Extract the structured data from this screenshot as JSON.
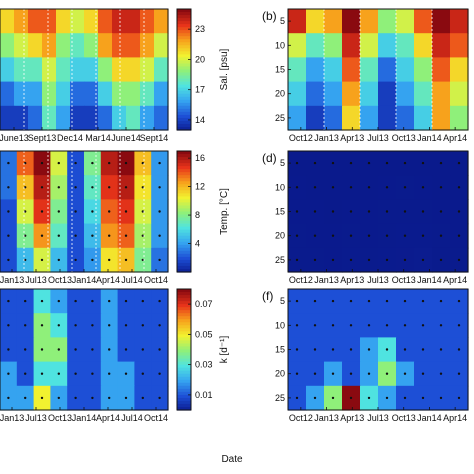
{
  "figure": {
    "xlabel": "Date"
  },
  "colors": {
    "cmap": [
      "#0a1a8c",
      "#1d4fd6",
      "#35a3f0",
      "#4fe3e0",
      "#8ff07a",
      "#f2f230",
      "#f7a21c",
      "#e8341a",
      "#8a0a10"
    ]
  },
  "chart_data": [
    {
      "type": "heatmap",
      "panel": "a",
      "label": "",
      "x_ticks": [
        "June13",
        "Sept13",
        "Dec14",
        "Mar14",
        "June14",
        "Sept14"
      ],
      "y_ticks": [],
      "colorbar": {
        "label": "Sal. [psu]",
        "ticks": [
          "23",
          "20",
          "17",
          "14"
        ],
        "range": [
          13,
          25
        ]
      },
      "dashed_lines": true,
      "grid": {
        "rows": [
          "5",
          "10",
          "15",
          "20",
          "25"
        ],
        "values": [
          [
            21,
            22,
            23,
            23,
            21,
            20,
            21,
            23,
            24,
            24,
            23,
            22
          ],
          [
            19,
            20,
            21,
            22,
            19,
            18,
            19,
            22,
            23,
            23,
            22,
            20
          ],
          [
            17,
            18,
            18,
            20,
            18,
            17,
            17,
            19,
            21,
            21,
            20,
            18
          ],
          [
            15,
            16,
            16,
            19,
            17,
            15,
            15,
            17,
            19,
            19,
            18,
            16
          ],
          [
            14,
            14,
            15,
            18,
            16,
            14,
            14,
            15,
            17,
            18,
            16,
            15
          ]
        ]
      }
    },
    {
      "type": "heatmap",
      "panel": "b",
      "label": "(b)",
      "x_ticks": [
        "Oct12",
        "Jan13",
        "Apr13",
        "Jul13",
        "Oct13",
        "Jan14",
        "Apr14"
      ],
      "y_ticks": [
        "5",
        "10",
        "15",
        "20",
        "25"
      ],
      "dashed_lines": true,
      "grid": {
        "rows": [
          "5",
          "10",
          "15",
          "20",
          "25"
        ],
        "values": [
          [
            24,
            21,
            22,
            25,
            22,
            19,
            20,
            23,
            25,
            24
          ],
          [
            20,
            18,
            19,
            24,
            20,
            17,
            18,
            21,
            24,
            23
          ],
          [
            18,
            16,
            17,
            23,
            18,
            15,
            17,
            19,
            23,
            21
          ],
          [
            17,
            15,
            16,
            22,
            17,
            14,
            16,
            18,
            22,
            20
          ],
          [
            16,
            14,
            15,
            21,
            16,
            14,
            15,
            17,
            22,
            19
          ]
        ]
      }
    },
    {
      "type": "heatmap",
      "panel": "c",
      "label": "",
      "x_ticks": [
        "Jan13",
        "Jul13",
        "Oct13",
        "Jan14",
        "Apr14",
        "Jul14",
        "Oct14"
      ],
      "y_ticks": [],
      "colorbar": {
        "label": "Temp. [°C]",
        "ticks": [
          "16",
          "12",
          "8",
          "4"
        ],
        "range": [
          0,
          17
        ]
      },
      "dashed_lines": true,
      "grid": {
        "rows": [
          "5",
          "10",
          "15",
          "20",
          "25"
        ],
        "values": [
          [
            3,
            14,
            17,
            10,
            2,
            8,
            16,
            17,
            12,
            4
          ],
          [
            3,
            12,
            16,
            9,
            2,
            7,
            15,
            16,
            11,
            4
          ],
          [
            2,
            10,
            15,
            8,
            2,
            6,
            14,
            15,
            10,
            4
          ],
          [
            2,
            8,
            13,
            7,
            2,
            5,
            13,
            14,
            9,
            4
          ],
          [
            2,
            5,
            10,
            5,
            2,
            4,
            11,
            12,
            8,
            3
          ]
        ]
      }
    },
    {
      "type": "heatmap",
      "panel": "d",
      "label": "(d)",
      "x_ticks": [
        "Oct12",
        "Jan13",
        "Apr13",
        "Jul13",
        "Oct13",
        "Jan14",
        "Apr14"
      ],
      "y_ticks": [
        "5",
        "10",
        "15",
        "20",
        "25"
      ],
      "grid": {
        "rows": [
          "5",
          "10",
          "15",
          "20",
          "25"
        ],
        "values": [
          [
            0.01,
            0.01,
            0.01,
            0.01,
            0.01,
            0.01,
            0.01,
            0.01,
            0.01,
            0.01
          ],
          [
            0.02,
            0.01,
            0.01,
            0.01,
            0.01,
            0.02,
            0.03,
            0.02,
            0.01,
            0.01
          ],
          [
            0.02,
            0.02,
            0.01,
            0.02,
            0.02,
            0.03,
            0.04,
            0.03,
            0.02,
            0.02
          ],
          [
            0.03,
            0.02,
            0.02,
            0.04,
            0.02,
            0.04,
            0.05,
            0.05,
            0.03,
            0.02
          ],
          [
            0.03,
            0.03,
            0.02,
            0.05,
            0.03,
            0.05,
            0.06,
            0.08,
            0.04,
            0.03
          ]
        ]
      }
    },
    {
      "type": "heatmap",
      "panel": "e",
      "label": "",
      "x_ticks": [
        "Jan13",
        "Jul13",
        "Oct13",
        "Jan14",
        "Apr14",
        "Jul14",
        "Oct14"
      ],
      "y_ticks": [],
      "colorbar": {
        "label": "k [d⁻¹]",
        "ticks": [
          "0.07",
          "0.05",
          "0.03",
          "0.01"
        ],
        "range": [
          0,
          0.08
        ]
      },
      "grid": {
        "rows": [
          "5",
          "10",
          "15",
          "20",
          "25"
        ],
        "values": [
          [
            0.01,
            0.01,
            0.03,
            0.02,
            0.01,
            0.01,
            0.02,
            0.01,
            0.01,
            0.01
          ],
          [
            0.01,
            0.01,
            0.04,
            0.03,
            0.01,
            0.01,
            0.02,
            0.01,
            0.01,
            0.01
          ],
          [
            0.01,
            0.01,
            0.04,
            0.04,
            0.01,
            0.01,
            0.02,
            0.01,
            0.01,
            0.01
          ],
          [
            0.02,
            0.01,
            0.03,
            0.03,
            0.01,
            0.01,
            0.02,
            0.02,
            0.01,
            0.01
          ],
          [
            0.02,
            0.02,
            0.05,
            0.02,
            0.01,
            0.01,
            0.02,
            0.02,
            0.01,
            0.01
          ]
        ]
      }
    },
    {
      "type": "heatmap",
      "panel": "f",
      "label": "(f)",
      "x_ticks": [
        "Oct12",
        "Jan13",
        "Apr13",
        "Jul13",
        "Oct13",
        "Jan14",
        "Apr14"
      ],
      "y_ticks": [
        "5",
        "10",
        "15",
        "20",
        "25"
      ],
      "grid": {
        "rows": [
          "5",
          "10",
          "15",
          "20",
          "25"
        ],
        "values": [
          [
            0.01,
            0.01,
            0.01,
            0.01,
            0.01,
            0.01,
            0.01,
            0.01,
            0.01,
            0.01
          ],
          [
            0.01,
            0.01,
            0.01,
            0.01,
            0.01,
            0.01,
            0.01,
            0.01,
            0.01,
            0.01
          ],
          [
            0.01,
            0.01,
            0.01,
            0.01,
            0.02,
            0.03,
            0.01,
            0.01,
            0.01,
            0.01
          ],
          [
            0.01,
            0.01,
            0.02,
            0.01,
            0.02,
            0.04,
            0.02,
            0.01,
            0.01,
            0.01
          ],
          [
            0.01,
            0.02,
            0.04,
            0.08,
            0.03,
            0.02,
            0.01,
            0.01,
            0.01,
            0.01
          ]
        ]
      }
    }
  ]
}
